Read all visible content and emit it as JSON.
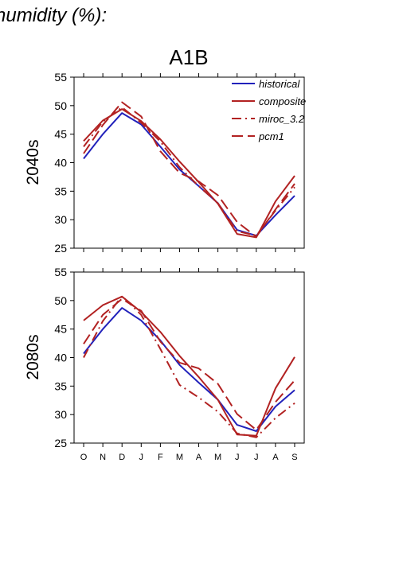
{
  "figure": {
    "top_title": "humidity (%):",
    "scenario": "A1B"
  },
  "colors": {
    "historical": "#2222bb",
    "composite": "#b22222",
    "miroc_3.2": "#b22222",
    "pcm1": "#b22222"
  },
  "chart_data": [
    {
      "type": "line",
      "panel_label": "2040s",
      "categories": [
        "O",
        "N",
        "D",
        "J",
        "F",
        "M",
        "A",
        "M",
        "J",
        "J",
        "A",
        "S"
      ],
      "ylim": [
        25,
        55
      ],
      "yticks": [
        25,
        30,
        35,
        40,
        45,
        50,
        55
      ],
      "legend": "top-right",
      "grid": false,
      "series": [
        {
          "name": "historical",
          "style": "solid",
          "values": [
            40.7,
            45.0,
            48.7,
            46.7,
            42.8,
            38.8,
            35.9,
            32.9,
            28.2,
            27.2,
            30.8,
            34.2
          ]
        },
        {
          "name": "composite",
          "style": "solid",
          "values": [
            43.8,
            47.4,
            49.4,
            47.3,
            44.1,
            40.2,
            36.6,
            32.8,
            27.5,
            26.9,
            33.2,
            37.7
          ]
        },
        {
          "name": "miroc_3.2",
          "style": "dashdot",
          "values": [
            42.8,
            47.2,
            49.7,
            47.0,
            43.7,
            39.2,
            35.9,
            32.9,
            28.0,
            27.2,
            31.6,
            35.7
          ]
        },
        {
          "name": "pcm1",
          "style": "dashed",
          "values": [
            41.6,
            46.6,
            50.6,
            48.1,
            42.0,
            38.2,
            36.7,
            34.3,
            29.6,
            27.0,
            31.8,
            36.3
          ]
        }
      ]
    },
    {
      "type": "line",
      "panel_label": "2080s",
      "categories": [
        "O",
        "N",
        "D",
        "J",
        "F",
        "M",
        "A",
        "M",
        "J",
        "J",
        "A",
        "S"
      ],
      "ylim": [
        25,
        55
      ],
      "yticks": [
        25,
        30,
        35,
        40,
        45,
        50,
        55
      ],
      "grid": false,
      "series": [
        {
          "name": "historical",
          "style": "solid",
          "values": [
            40.7,
            45.0,
            48.7,
            46.5,
            43.0,
            38.7,
            35.6,
            32.6,
            28.2,
            27.1,
            31.4,
            34.3
          ]
        },
        {
          "name": "composite",
          "style": "solid",
          "values": [
            46.5,
            49.2,
            50.7,
            48.0,
            44.5,
            40.3,
            36.6,
            32.6,
            26.5,
            26.3,
            34.6,
            40.1
          ]
        },
        {
          "name": "miroc_3.2",
          "style": "dashdot",
          "values": [
            40.0,
            46.4,
            50.8,
            47.5,
            41.5,
            35.2,
            33.0,
            30.5,
            26.7,
            26.0,
            29.4,
            32.0
          ]
        },
        {
          "name": "pcm1",
          "style": "dashed",
          "values": [
            42.4,
            47.5,
            50.3,
            48.2,
            42.8,
            39.1,
            38.1,
            35.4,
            30.1,
            27.3,
            32.2,
            36.0
          ]
        }
      ]
    }
  ]
}
